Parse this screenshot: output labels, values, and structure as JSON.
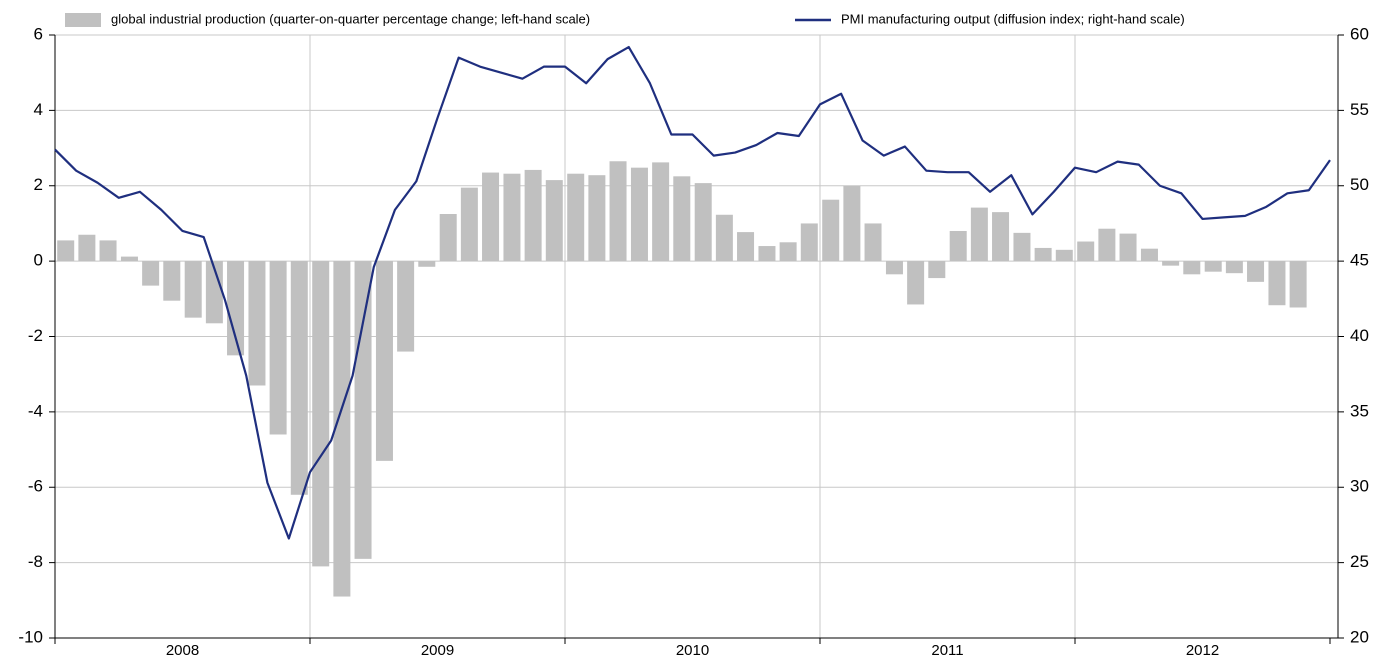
{
  "chart_data": {
    "type": "bar-line",
    "xlim": [
      2008,
      2013
    ],
    "xticks": [
      {
        "value": 2008.5,
        "label": "2008"
      },
      {
        "value": 2009.5,
        "label": "2009"
      },
      {
        "value": 2010.5,
        "label": "2010"
      },
      {
        "value": 2011.5,
        "label": "2011"
      },
      {
        "value": 2012.5,
        "label": "2012"
      }
    ],
    "ylim": [
      -10,
      6
    ],
    "yticks": [
      -10,
      -8,
      -6,
      -4,
      -2,
      0,
      2,
      4,
      6
    ],
    "y2lim": [
      20,
      60
    ],
    "y2ticks": [
      20,
      25,
      30,
      35,
      40,
      45,
      50,
      55,
      60
    ],
    "grid": true,
    "series": [
      {
        "name": "global industrial production (quarter-on-quarter percentage change; left-hand scale)",
        "type": "bar",
        "color": "#c0c0c0",
        "x": [
          2008.042,
          2008.125,
          2008.208,
          2008.292,
          2008.375,
          2008.458,
          2008.542,
          2008.625,
          2008.708,
          2008.792,
          2008.875,
          2008.958,
          2009.042,
          2009.125,
          2009.208,
          2009.292,
          2009.375,
          2009.458,
          2009.542,
          2009.625,
          2009.708,
          2009.792,
          2009.875,
          2009.958,
          2010.042,
          2010.125,
          2010.208,
          2010.292,
          2010.375,
          2010.458,
          2010.542,
          2010.625,
          2010.708,
          2010.792,
          2010.875,
          2010.958,
          2011.042,
          2011.125,
          2011.208,
          2011.292,
          2011.375,
          2011.458,
          2011.542,
          2011.625,
          2011.708,
          2011.792,
          2011.875,
          2011.958,
          2012.042,
          2012.125,
          2012.208,
          2012.292,
          2012.375,
          2012.458,
          2012.542,
          2012.625,
          2012.708,
          2012.792,
          2012.875,
          2012.958
        ],
        "values": [
          0.55,
          0.7,
          0.55,
          0.12,
          -0.65,
          -1.05,
          -1.5,
          -1.65,
          -2.5,
          -3.3,
          -4.6,
          -6.2,
          -8.1,
          -8.9,
          -7.9,
          -5.3,
          -2.4,
          -0.15,
          1.25,
          1.95,
          2.35,
          2.32,
          2.42,
          2.15,
          2.32,
          2.28,
          2.65,
          2.48,
          2.62,
          2.25,
          2.07,
          1.23,
          0.77,
          0.4,
          0.5,
          1.0,
          1.63,
          2.0,
          1.0,
          -0.35,
          -1.15,
          -0.45,
          0.8,
          1.42,
          1.3,
          0.75,
          0.35,
          0.3,
          0.52,
          0.86,
          0.73,
          0.33,
          -0.12,
          -0.35,
          -0.28,
          -0.32,
          -0.55,
          -1.17,
          -1.23,
          null
        ]
      },
      {
        "name": "PMI manufacturing output (diffusion index; right-hand scale)",
        "type": "line",
        "axis": "y2",
        "color": "#1f2f7f",
        "x": [
          2008,
          2008.083,
          2008.167,
          2008.25,
          2008.333,
          2008.417,
          2008.5,
          2008.583,
          2008.667,
          2008.75,
          2008.833,
          2008.917,
          2009,
          2009.083,
          2009.167,
          2009.25,
          2009.333,
          2009.417,
          2009.5,
          2009.583,
          2009.667,
          2009.75,
          2009.833,
          2009.917,
          2010,
          2010.083,
          2010.167,
          2010.25,
          2010.333,
          2010.417,
          2010.5,
          2010.583,
          2010.667,
          2010.75,
          2010.833,
          2010.917,
          2011,
          2011.083,
          2011.167,
          2011.25,
          2011.333,
          2011.417,
          2011.5,
          2011.583,
          2011.667,
          2011.75,
          2011.833,
          2011.917,
          2012,
          2012.083,
          2012.167,
          2012.25,
          2012.333,
          2012.417,
          2012.5,
          2012.583,
          2012.667,
          2012.75,
          2012.833,
          2012.917,
          2013
        ],
        "values": [
          52.4,
          51.0,
          50.2,
          49.2,
          49.6,
          48.4,
          47.0,
          46.6,
          42.4,
          37.4,
          30.3,
          26.6,
          31.0,
          33.1,
          37.4,
          44.6,
          48.4,
          50.3,
          54.5,
          58.5,
          57.9,
          57.5,
          57.1,
          57.9,
          57.9,
          56.8,
          58.4,
          59.2,
          56.8,
          53.4,
          53.4,
          52.0,
          52.2,
          52.7,
          53.5,
          53.3,
          55.4,
          56.1,
          53.0,
          52.0,
          52.6,
          51.0,
          50.9,
          50.9,
          49.6,
          50.7,
          48.1,
          49.6,
          51.2,
          50.9,
          51.6,
          51.4,
          50.0,
          49.5,
          47.8,
          47.9,
          48.0,
          48.6,
          49.5,
          49.7,
          51.7
        ]
      }
    ]
  }
}
